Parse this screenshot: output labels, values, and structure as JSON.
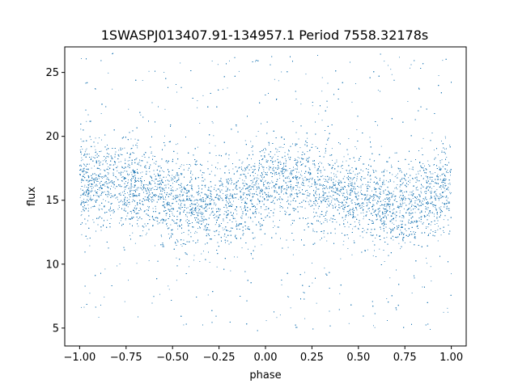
{
  "chart_data": {
    "type": "scatter",
    "title": "1SWASPJ013407.91-134957.1 Period 7558.32178s",
    "xlabel": "phase",
    "ylabel": "flux",
    "xlim": [
      -1.08,
      1.08
    ],
    "ylim": [
      3.6,
      27.0
    ],
    "xticks": [
      -1.0,
      -0.75,
      -0.5,
      -0.25,
      0.0,
      0.25,
      0.5,
      0.75,
      1.0
    ],
    "xtick_labels": [
      "−1.00",
      "−0.75",
      "−0.50",
      "−0.25",
      "0.00",
      "0.25",
      "0.50",
      "0.75",
      "1.00"
    ],
    "yticks": [
      5,
      10,
      15,
      20,
      25
    ],
    "ytick_labels": [
      "5",
      "10",
      "15",
      "20",
      "25"
    ],
    "grid": false,
    "marker_color": "#1f77b4",
    "series": [
      {
        "phase": [
          -1.0,
          -0.9,
          -0.8,
          -0.7,
          -0.6,
          -0.5,
          -0.4,
          -0.3,
          -0.2,
          -0.1,
          0.0,
          0.1,
          0.2,
          0.3,
          0.4,
          0.5,
          0.6,
          0.7,
          0.8,
          0.9,
          1.0
        ],
        "flux_median": [
          16.2,
          16.5,
          16.4,
          16.0,
          15.6,
          15.1,
          14.8,
          14.5,
          14.7,
          15.4,
          16.2,
          16.6,
          16.4,
          16.0,
          15.6,
          15.1,
          14.8,
          14.5,
          14.7,
          15.4,
          16.0
        ],
        "flux_min": 4.8,
        "flux_max": 26.5
      }
    ]
  }
}
